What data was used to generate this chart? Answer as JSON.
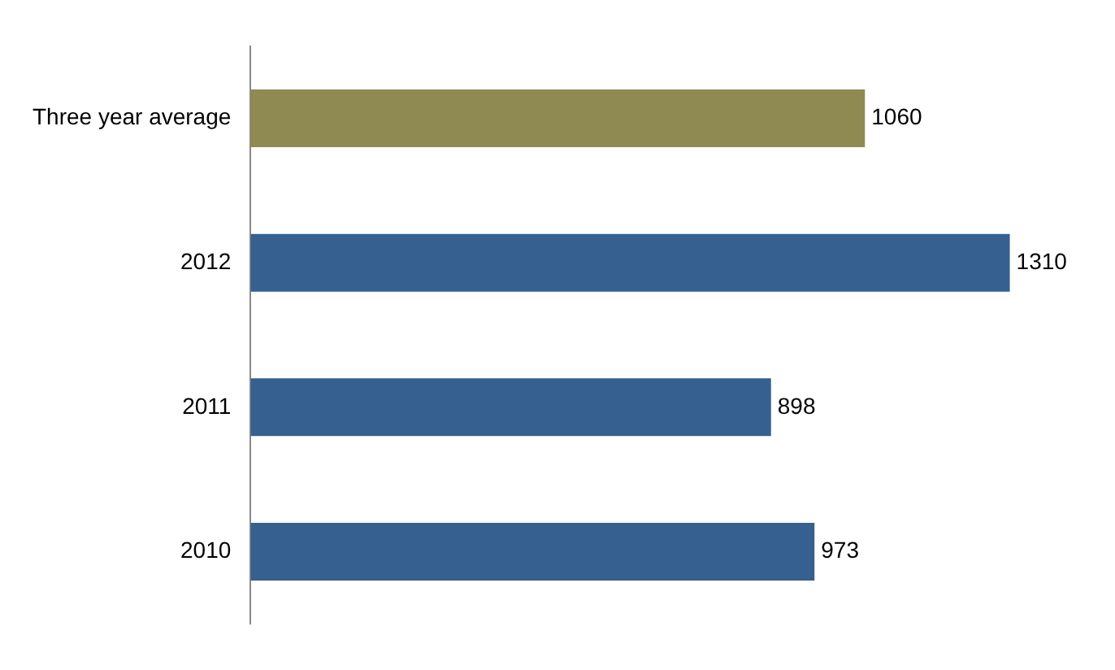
{
  "chart_data": {
    "type": "bar",
    "orientation": "horizontal",
    "categories": [
      "Three year average",
      "2012",
      "2011",
      "2010"
    ],
    "values": [
      1060,
      1310,
      898,
      973
    ],
    "colors": [
      "#8f8a52",
      "#36608f",
      "#36608f",
      "#36608f"
    ],
    "data_labels": true,
    "legend": false,
    "tick_labels": "y"
  }
}
